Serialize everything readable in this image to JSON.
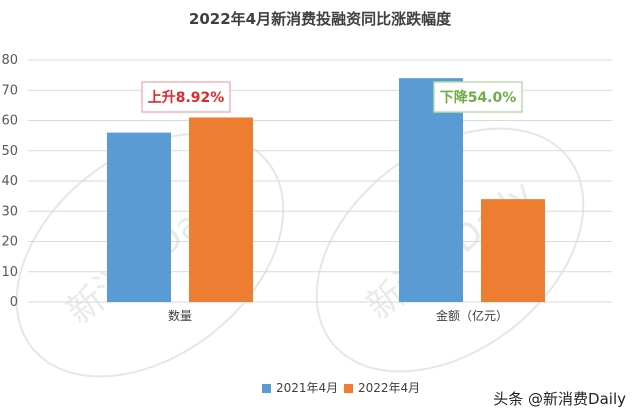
{
  "chart_data": {
    "type": "bar",
    "title": "2022年4月新消费投融资同比涨跌幅度",
    "categories": [
      "数量",
      "金额（亿元）"
    ],
    "series": [
      {
        "name": "2021年4月",
        "values": [
          56,
          74
        ],
        "color": "#5b9bd5"
      },
      {
        "name": "2022年4月",
        "values": [
          61,
          34
        ],
        "color": "#ed7d31"
      }
    ],
    "ylim": [
      0,
      80
    ],
    "yticks": [
      0,
      10,
      20,
      30,
      40,
      50,
      60,
      70,
      80
    ],
    "grid": true,
    "legend_position": "bottom",
    "annotations": [
      {
        "text": "上升8.92%",
        "category": "数量",
        "color": "#e0282e",
        "border": "#f4b6b8"
      },
      {
        "text": "下降54.0%",
        "category": "金额（亿元）",
        "color": "#70ad47",
        "border": "#b8dcaa"
      }
    ]
  },
  "watermark": "新消费Daily",
  "source": "头条 @新消费Daily"
}
